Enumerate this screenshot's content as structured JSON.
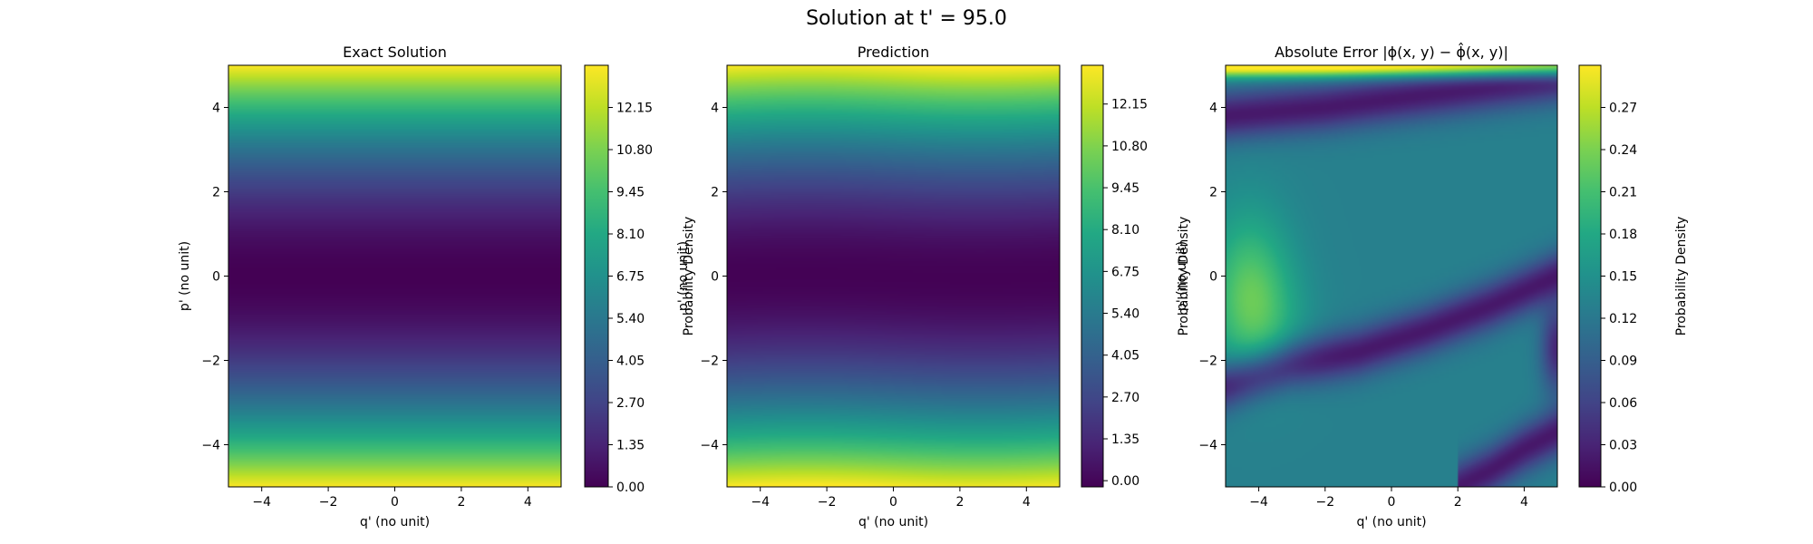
{
  "suptitle": "Solution at t' = 95.0",
  "chart_data": [
    {
      "type": "heatmap",
      "title": "Exact Solution",
      "xlabel": "q' (no unit)",
      "ylabel": "p' (no unit)",
      "xlim": [
        -5,
        5
      ],
      "ylim": [
        -5,
        5
      ],
      "xticks": [
        "−4",
        "−2",
        "0",
        "2",
        "4"
      ],
      "xtick_values": [
        -4,
        -2,
        0,
        2,
        4
      ],
      "yticks": [
        "4",
        "2",
        "0",
        "−2",
        "−4"
      ],
      "ytick_values": [
        4,
        2,
        0,
        -2,
        -4
      ],
      "colorbar": {
        "label": "Probability Density",
        "colormap": "viridis",
        "range": [
          0,
          13.5
        ],
        "tick_labels": [
          "0.00",
          "1.35",
          "2.70",
          "4.05",
          "5.40",
          "6.75",
          "8.10",
          "9.45",
          "10.80",
          "12.15"
        ],
        "tick_values": [
          0,
          1.35,
          2.7,
          4.05,
          5.4,
          6.75,
          8.1,
          9.45,
          10.8,
          12.15
        ]
      },
      "field": "exact",
      "value_profile_p_vs_density": [
        [
          -5,
          13.5
        ],
        [
          -4,
          10.2
        ],
        [
          -2,
          4.0
        ],
        [
          0,
          0.2
        ],
        [
          2,
          3.9
        ],
        [
          4,
          10.0
        ],
        [
          5,
          13.5
        ]
      ]
    },
    {
      "type": "heatmap",
      "title": "Prediction",
      "xlabel": "q' (no unit)",
      "ylabel": "p' (no unit)",
      "xlim": [
        -5,
        5
      ],
      "ylim": [
        -5,
        5
      ],
      "xticks": [
        "−4",
        "−2",
        "0",
        "2",
        "4"
      ],
      "xtick_values": [
        -4,
        -2,
        0,
        2,
        4
      ],
      "yticks": [
        "4",
        "2",
        "0",
        "−2",
        "−4"
      ],
      "ytick_values": [
        4,
        2,
        0,
        -2,
        -4
      ],
      "colorbar": {
        "label": "Probability Density",
        "colormap": "viridis",
        "range": [
          -0.2,
          13.4
        ],
        "tick_labels": [
          "0.00",
          "1.35",
          "2.70",
          "4.05",
          "5.40",
          "6.75",
          "8.10",
          "9.45",
          "10.80",
          "12.15"
        ],
        "tick_values": [
          0,
          1.35,
          2.7,
          4.05,
          5.4,
          6.75,
          8.1,
          9.45,
          10.8,
          12.15
        ]
      },
      "field": "prediction"
    },
    {
      "type": "heatmap",
      "title": "Absolute Error |ϕ(x, y) − ϕ̂(x, y)|",
      "xlabel": "q' (no unit)",
      "ylabel": "p' (no unit)",
      "xlim": [
        -5,
        5
      ],
      "ylim": [
        -5,
        5
      ],
      "xticks": [
        "−4",
        "−2",
        "0",
        "2",
        "4"
      ],
      "xtick_values": [
        -4,
        -2,
        0,
        2,
        4
      ],
      "yticks": [
        "4",
        "2",
        "0",
        "−2",
        "−4"
      ],
      "ytick_values": [
        4,
        2,
        0,
        -2,
        -4
      ],
      "colorbar": {
        "label": "Probability Density",
        "colormap": "viridis",
        "range": [
          0,
          0.3
        ],
        "tick_labels": [
          "0.00",
          "0.03",
          "0.06",
          "0.09",
          "0.12",
          "0.15",
          "0.18",
          "0.21",
          "0.24",
          "0.27"
        ],
        "tick_values": [
          0,
          0.03,
          0.06,
          0.09,
          0.12,
          0.15,
          0.18,
          0.21,
          0.24,
          0.27
        ]
      },
      "field": "abs_error",
      "zero_error_curves": [
        [
          [
            -5,
            3.8
          ],
          [
            -2,
            4.0
          ],
          [
            1,
            4.3
          ],
          [
            5,
            4.7
          ]
        ],
        [
          [
            -5,
            -2.6
          ],
          [
            -3,
            -2.1
          ],
          [
            -1,
            -1.8
          ],
          [
            1,
            -1.3
          ],
          [
            3,
            -0.7
          ],
          [
            5,
            0.0
          ]
        ],
        [
          [
            2,
            -5
          ],
          [
            3,
            -4.6
          ],
          [
            4,
            -4.1
          ],
          [
            5,
            -3.7
          ]
        ]
      ]
    }
  ]
}
